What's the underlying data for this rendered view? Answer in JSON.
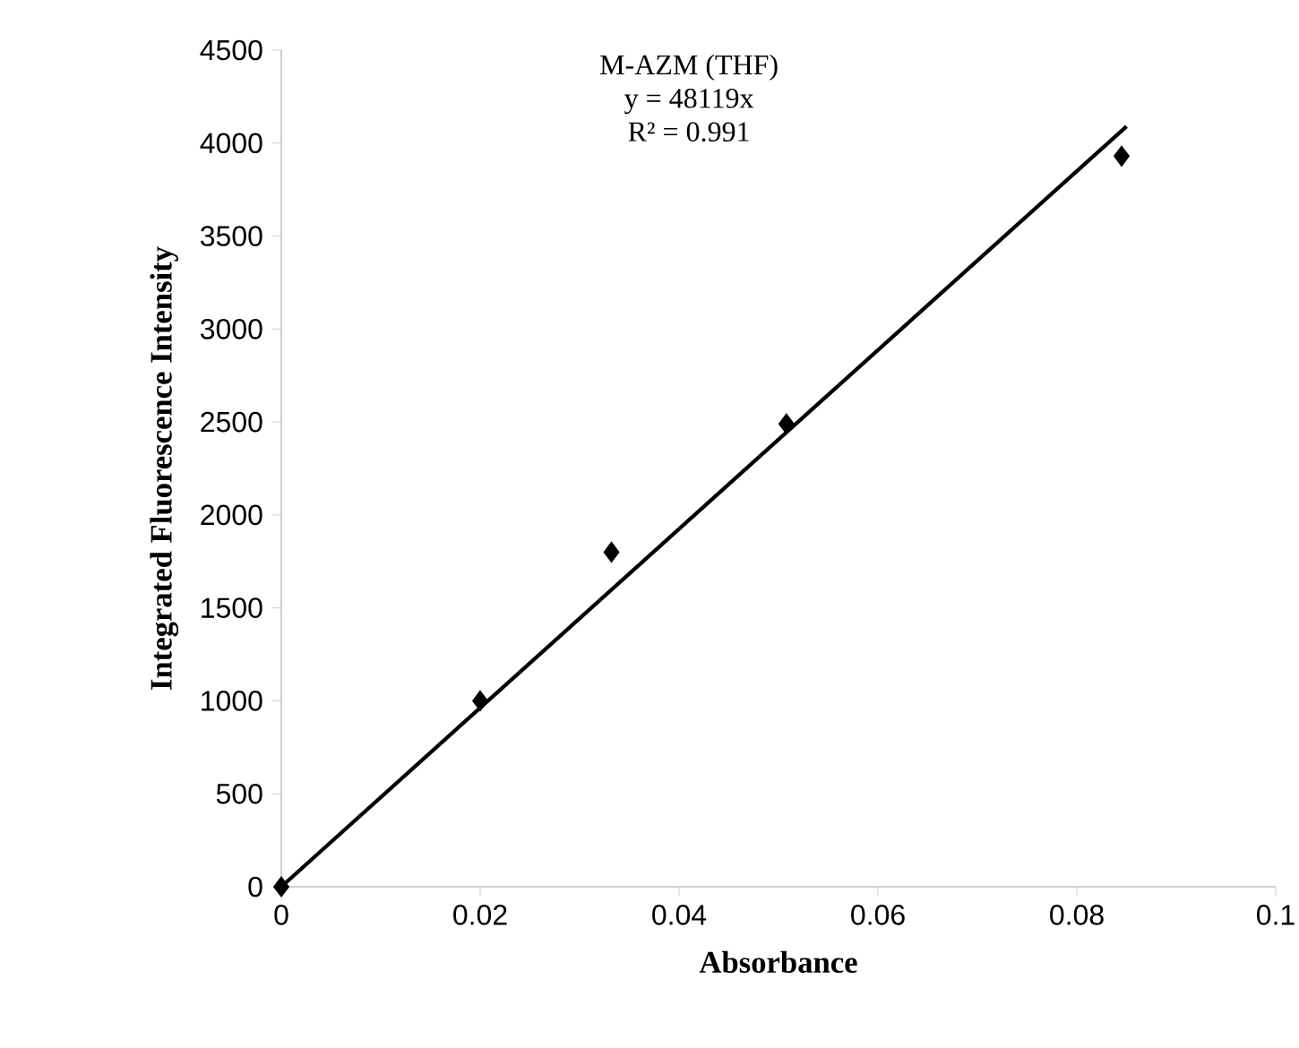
{
  "chart_data": {
    "type": "scatter",
    "title": "M-AZM (THF)",
    "xlabel": "Absorbance",
    "ylabel": "Integrated Fluorescence Intensity",
    "annotations": [
      "y = 48119x",
      "R² = 0.991"
    ],
    "series": [
      {
        "color": "#000000",
        "marker": "diamond",
        "x": [
          0,
          0.02,
          0.0332,
          0.0508,
          0.0845
        ],
        "values": [
          0,
          1000,
          1800,
          2490,
          3930
        ]
      },
      {
        "type": "line",
        "color": "#000000",
        "line_style": "solid",
        "x": [
          0,
          0.085
        ],
        "values": [
          0,
          4090
        ]
      }
    ],
    "xlim": [
      0,
      0.1
    ],
    "xticks": [
      0,
      0.02,
      0.04,
      0.06,
      0.08,
      0.1
    ],
    "ylim": [
      0,
      4500
    ],
    "yticks": [
      0,
      500,
      1000,
      1500,
      2000,
      2500,
      3000,
      3500,
      4000,
      4500
    ]
  }
}
